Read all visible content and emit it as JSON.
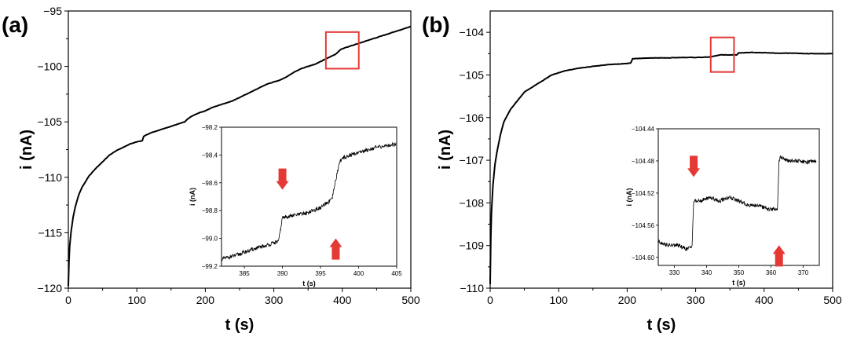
{
  "chart_data": [
    {
      "panel": "(a)",
      "type": "line",
      "xlabel": "t (s)",
      "ylabel": "i (nA)",
      "xlim": [
        0,
        500
      ],
      "ylim": [
        -120,
        -95
      ],
      "xticks": [
        0,
        100,
        200,
        300,
        400,
        500
      ],
      "yticks": [
        -120,
        -115,
        -110,
        -105,
        -100,
        -95
      ],
      "grid": false,
      "line_color": "#000000",
      "series": [
        {
          "x": [
            0,
            1,
            2,
            4,
            7,
            10,
            15,
            20,
            30,
            40,
            50,
            60,
            70,
            80,
            90,
            100,
            108,
            110,
            120,
            130,
            140,
            150,
            160,
            170,
            175,
            180,
            190,
            200,
            210,
            220,
            230,
            240,
            250,
            260,
            270,
            280,
            290,
            300,
            310,
            320,
            330,
            340,
            350,
            360,
            370,
            380,
            390,
            397,
            400,
            410,
            420,
            430,
            440,
            450,
            460,
            470,
            480,
            490,
            500
          ],
          "y": [
            -119.8,
            -117.5,
            -116.2,
            -114.9,
            -113.6,
            -112.7,
            -111.6,
            -110.9,
            -109.9,
            -109.2,
            -108.6,
            -108.0,
            -107.6,
            -107.3,
            -107.0,
            -106.8,
            -106.7,
            -106.3,
            -106.0,
            -105.8,
            -105.6,
            -105.4,
            -105.2,
            -105.0,
            -104.7,
            -104.5,
            -104.2,
            -104.0,
            -103.7,
            -103.5,
            -103.3,
            -103.1,
            -102.8,
            -102.5,
            -102.2,
            -101.9,
            -101.6,
            -101.4,
            -101.2,
            -100.9,
            -100.5,
            -100.2,
            -100.0,
            -99.8,
            -99.5,
            -99.2,
            -98.9,
            -98.5,
            -98.4,
            -98.2,
            -98.0,
            -97.8,
            -97.6,
            -97.4,
            -97.2,
            -97.0,
            -96.8,
            -96.6,
            -96.4
          ]
        }
      ],
      "highlight_box": {
        "x": [
          376,
          424
        ],
        "y": [
          -100.2,
          -96.9
        ],
        "color": "#e53935"
      },
      "inset": {
        "xlim": [
          382,
          405
        ],
        "ylim": [
          -99.2,
          -98.2
        ],
        "xticks": [
          385,
          390,
          395,
          400,
          405
        ],
        "yticks": [
          -99.2,
          -99.0,
          -98.8,
          -98.6,
          -98.4,
          -98.2
        ],
        "xlabel": "t (s)",
        "ylabel": "i (nA)",
        "series": [
          {
            "x": [
              382,
              384,
              386,
              388,
              389.5,
              390,
              391,
              393,
              395,
              396.5,
              397,
              397.5,
              398,
              400,
              402,
              404,
              405
            ],
            "y": [
              -99.15,
              -99.12,
              -99.08,
              -99.05,
              -99.02,
              -98.85,
              -98.84,
              -98.82,
              -98.78,
              -98.72,
              -98.58,
              -98.45,
              -98.42,
              -98.38,
              -98.35,
              -98.33,
              -98.32
            ]
          }
        ],
        "arrows": [
          {
            "x": 390,
            "y": -98.65,
            "direction": "down",
            "color": "#e53935"
          },
          {
            "x": 397,
            "y": -99.0,
            "direction": "up",
            "color": "#e53935"
          }
        ]
      }
    },
    {
      "panel": "(b)",
      "type": "line",
      "xlabel": "t (s)",
      "ylabel": "i (nA)",
      "xlim": [
        0,
        500
      ],
      "ylim": [
        -110,
        -103.5
      ],
      "xticks": [
        0,
        100,
        200,
        300,
        400,
        500
      ],
      "yticks": [
        -110,
        -109,
        -108,
        -107,
        -106,
        -105,
        -104
      ],
      "grid": false,
      "line_color": "#000000",
      "series": [
        {
          "x": [
            0,
            1,
            2,
            4,
            7,
            10,
            15,
            20,
            30,
            40,
            50,
            60,
            70,
            80,
            90,
            100,
            110,
            120,
            130,
            140,
            150,
            160,
            170,
            180,
            190,
            200,
            205,
            208,
            220,
            240,
            260,
            280,
            300,
            320,
            336,
            340,
            360,
            363,
            370,
            380,
            400,
            420,
            440,
            460,
            480,
            500
          ],
          "y": [
            -109.9,
            -108.8,
            -108.2,
            -107.6,
            -107.1,
            -106.8,
            -106.4,
            -106.1,
            -105.8,
            -105.6,
            -105.4,
            -105.3,
            -105.2,
            -105.1,
            -105.0,
            -104.95,
            -104.9,
            -104.87,
            -104.84,
            -104.82,
            -104.8,
            -104.78,
            -104.76,
            -104.75,
            -104.74,
            -104.73,
            -104.72,
            -104.62,
            -104.61,
            -104.6,
            -104.6,
            -104.59,
            -104.59,
            -104.58,
            -104.53,
            -104.53,
            -104.53,
            -104.48,
            -104.48,
            -104.47,
            -104.48,
            -104.49,
            -104.49,
            -104.5,
            -104.5,
            -104.5
          ]
        }
      ],
      "highlight_box": {
        "x": [
          322,
          356
        ],
        "y": [
          -104.93,
          -104.12
        ],
        "color": "#e53935"
      },
      "inset": {
        "xlim": [
          325,
          375
        ],
        "ylim": [
          -104.61,
          -104.44
        ],
        "xticks": [
          330,
          340,
          350,
          360,
          370
        ],
        "yticks": [
          -104.6,
          -104.56,
          -104.52,
          -104.48,
          -104.44
        ],
        "xlabel": "t (s)",
        "ylabel": "i (nA)",
        "series": [
          {
            "x": [
              325,
              328,
              331,
              334,
              335.5,
              336,
              338,
              341,
              344,
              347,
              350,
              353,
              356,
              359,
              362,
              362.5,
              363,
              365,
              367,
              369,
              371,
              373,
              374
            ],
            "y": [
              -104.58,
              -104.585,
              -104.585,
              -104.59,
              -104.585,
              -104.53,
              -104.53,
              -104.525,
              -104.53,
              -104.525,
              -104.53,
              -104.535,
              -104.535,
              -104.54,
              -104.54,
              -104.48,
              -104.475,
              -104.48,
              -104.48,
              -104.48,
              -104.482,
              -104.48,
              -104.48
            ]
          }
        ],
        "arrows": [
          {
            "x": 336,
            "y": -104.5,
            "direction": "down",
            "color": "#e53935"
          },
          {
            "x": 362.5,
            "y": -104.585,
            "direction": "up",
            "color": "#e53935"
          }
        ]
      }
    }
  ]
}
